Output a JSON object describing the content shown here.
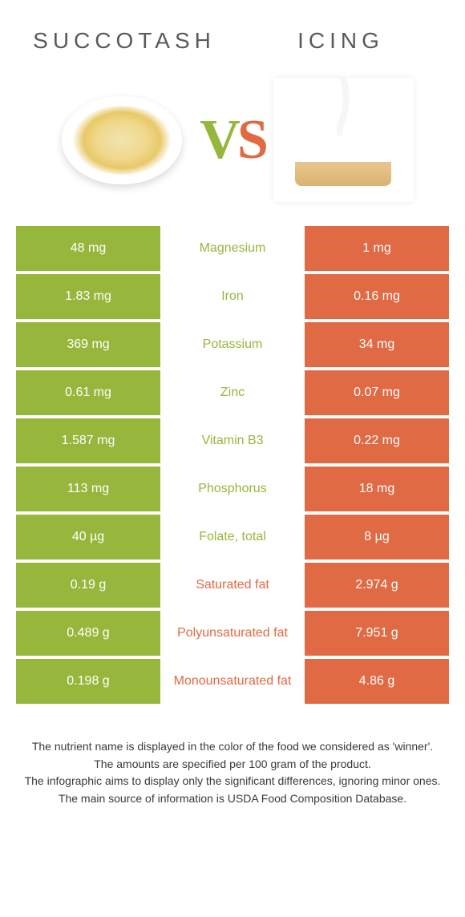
{
  "titles": {
    "left": "Succotash",
    "right": "Icing"
  },
  "vs": {
    "v": "V",
    "s": "S"
  },
  "colors": {
    "green": "#97b63c",
    "orange": "#e06a44"
  },
  "rows": [
    {
      "left": "48 mg",
      "mid": "Magnesium",
      "right": "1 mg",
      "winner": "left"
    },
    {
      "left": "1.83 mg",
      "mid": "Iron",
      "right": "0.16 mg",
      "winner": "left"
    },
    {
      "left": "369 mg",
      "mid": "Potassium",
      "right": "34 mg",
      "winner": "left"
    },
    {
      "left": "0.61 mg",
      "mid": "Zinc",
      "right": "0.07 mg",
      "winner": "left"
    },
    {
      "left": "1.587 mg",
      "mid": "Vitamin B3",
      "right": "0.22 mg",
      "winner": "left"
    },
    {
      "left": "113 mg",
      "mid": "Phosphorus",
      "right": "18 mg",
      "winner": "left"
    },
    {
      "left": "40 µg",
      "mid": "Folate, total",
      "right": "8 µg",
      "winner": "left"
    },
    {
      "left": "0.19 g",
      "mid": "Saturated fat",
      "right": "2.974 g",
      "winner": "right"
    },
    {
      "left": "0.489 g",
      "mid": "Polyunsaturated fat",
      "right": "7.951 g",
      "winner": "right"
    },
    {
      "left": "0.198 g",
      "mid": "Monounsaturated fat",
      "right": "4.86 g",
      "winner": "right"
    }
  ],
  "footnotes": [
    "The nutrient name is displayed in the color of the food we considered as 'winner'.",
    "The amounts are specified per 100 gram of the product.",
    "The infographic aims to display only the significant differences, ignoring minor ones.",
    "The main source of information is USDA Food Composition Database."
  ]
}
